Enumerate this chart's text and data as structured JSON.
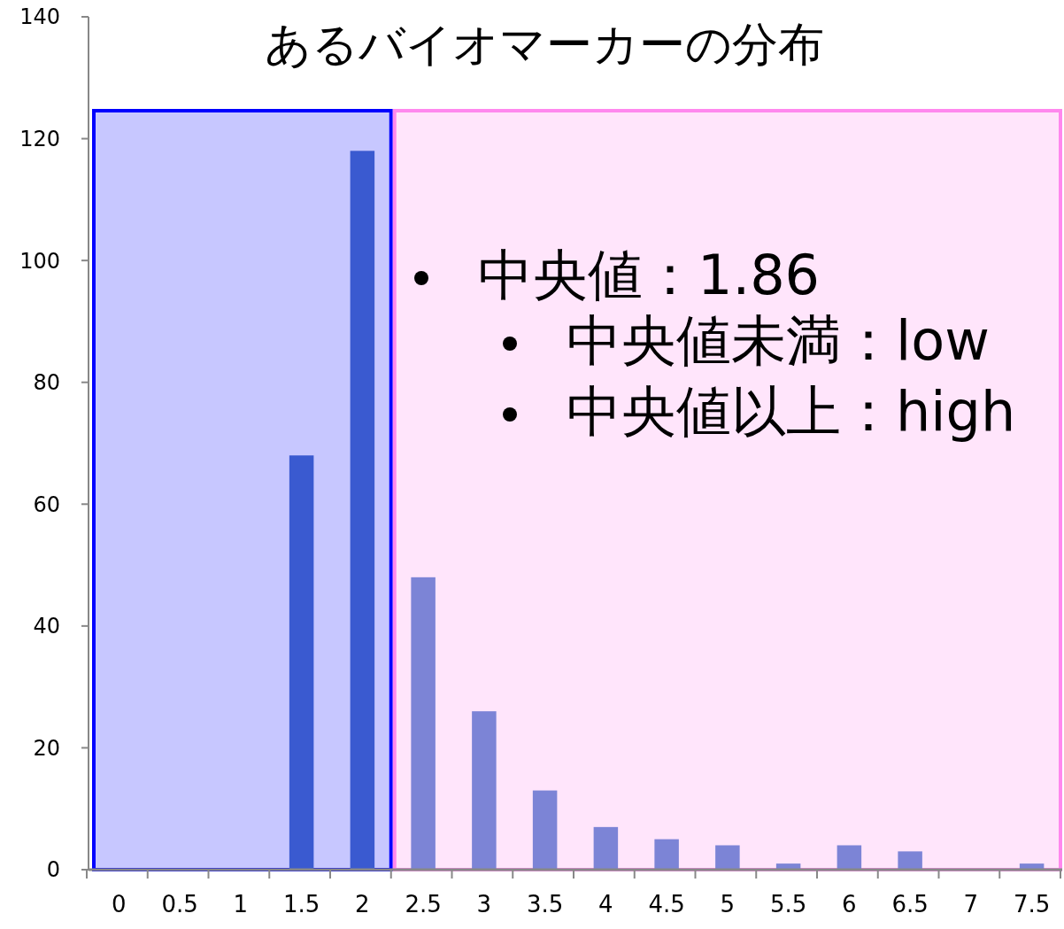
{
  "chart_data": {
    "type": "bar",
    "title": "あるバイオマーカーの分布",
    "categories": [
      "0",
      "0.5",
      "1",
      "1.5",
      "2",
      "2.5",
      "3",
      "3.5",
      "4",
      "4.5",
      "5",
      "5.5",
      "6",
      "6.5",
      "7",
      "7.5"
    ],
    "values": [
      0,
      0,
      0,
      68,
      118,
      48,
      26,
      13,
      7,
      5,
      4,
      1,
      4,
      3,
      0,
      1
    ],
    "colors": [
      "#3a5ad0",
      "#3a5ad0",
      "#3a5ad0",
      "#3a5ad0",
      "#3a5ad0",
      "#7c84d6",
      "#7c84d6",
      "#7c84d6",
      "#7c84d6",
      "#7c84d6",
      "#7c84d6",
      "#7c84d6",
      "#7c84d6",
      "#7c84d6",
      "#7c84d6",
      "#7c84d6"
    ],
    "ylim": [
      0,
      140
    ],
    "yticks": [
      0,
      20,
      40,
      60,
      80,
      100,
      120,
      140
    ],
    "bands": [
      {
        "axis": "x",
        "from": "0",
        "to": "2",
        "color": "#0000ff"
      },
      {
        "axis": "x",
        "from": "2.5",
        "to": "7.5",
        "color": "#ff88ee"
      }
    ],
    "annotations": [
      "中央値：1.86",
      "中央値未満：low",
      "中央値以上：high"
    ]
  }
}
